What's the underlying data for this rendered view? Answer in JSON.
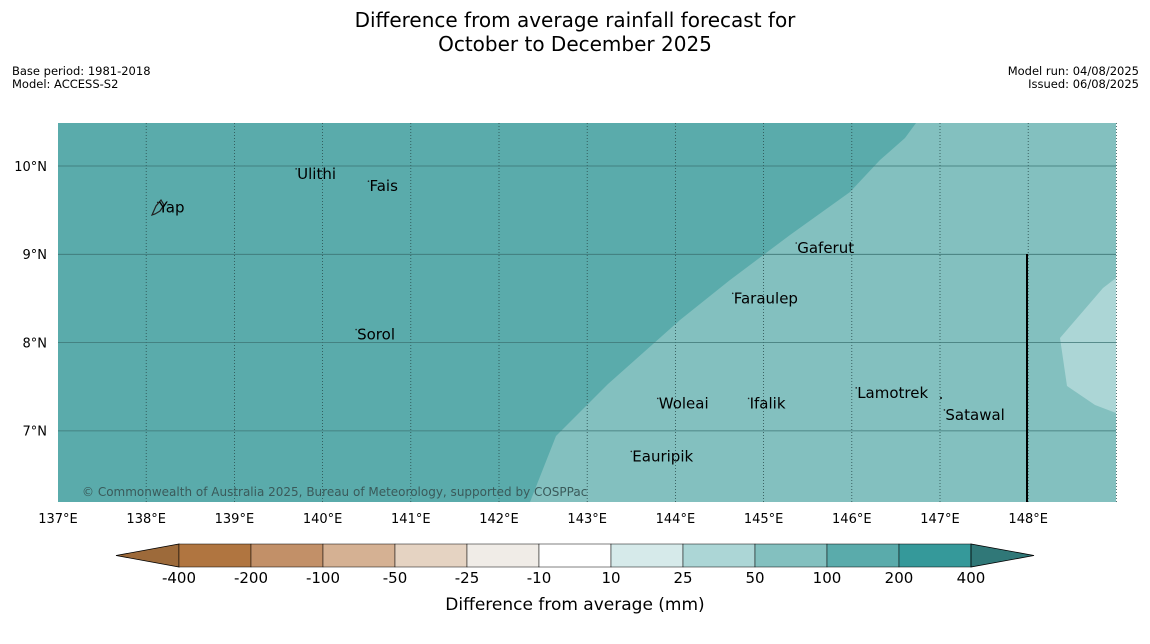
{
  "title": {
    "line1": "Difference from average rainfall forecast for",
    "line2": "October to December 2025"
  },
  "meta_left": {
    "base_period": "Base period: 1981-2018",
    "model": "Model: ACCESS-S2"
  },
  "meta_right": {
    "model_run": "Model run: 04/08/2025",
    "issued": "Issued: 06/08/2025"
  },
  "map": {
    "lon_ticks": [
      "137°E",
      "138°E",
      "139°E",
      "140°E",
      "141°E",
      "142°E",
      "143°E",
      "144°E",
      "145°E",
      "146°E",
      "147°E",
      "148°E"
    ],
    "lat_ticks": [
      "10°N",
      "9°N",
      "8°N",
      "7°N"
    ],
    "places": [
      {
        "name": "Ulithi",
        "lon": 139.7,
        "lat": 9.9
      },
      {
        "name": "Fais",
        "lon": 140.52,
        "lat": 9.76
      },
      {
        "name": "Yap",
        "lon": 138.13,
        "lat": 9.52
      },
      {
        "name": "Gaferut",
        "lon": 145.37,
        "lat": 9.06
      },
      {
        "name": "Faraulep",
        "lon": 144.65,
        "lat": 8.49
      },
      {
        "name": "Sorol",
        "lon": 140.38,
        "lat": 8.08
      },
      {
        "name": "Lamotrek",
        "lon": 146.05,
        "lat": 7.42
      },
      {
        "name": "Woleai",
        "lon": 143.8,
        "lat": 7.3
      },
      {
        "name": "Ifalik",
        "lon": 144.83,
        "lat": 7.3
      },
      {
        "name": "Satawal",
        "lon": 147.05,
        "lat": 7.17
      },
      {
        "name": "Eauripik",
        "lon": 143.5,
        "lat": 6.7
      }
    ],
    "copyright": "© Commonwealth of Australia 2025, Bureau of Meteorology, supported by COSPPac"
  },
  "colorbar": {
    "labels": [
      "-400",
      "-200",
      "-100",
      "-50",
      "-25",
      "-10",
      "10",
      "25",
      "50",
      "100",
      "200",
      "400"
    ],
    "colors": [
      "#9d6a3a",
      "#b07540",
      "#c29068",
      "#d5b193",
      "#e5d3c2",
      "#f0ece7",
      "#ffffff",
      "#d6eaea",
      "#acd6d6",
      "#83c0bf",
      "#5aabab",
      "#35999a",
      "#307878"
    ],
    "title": "Difference from average (mm)"
  }
}
